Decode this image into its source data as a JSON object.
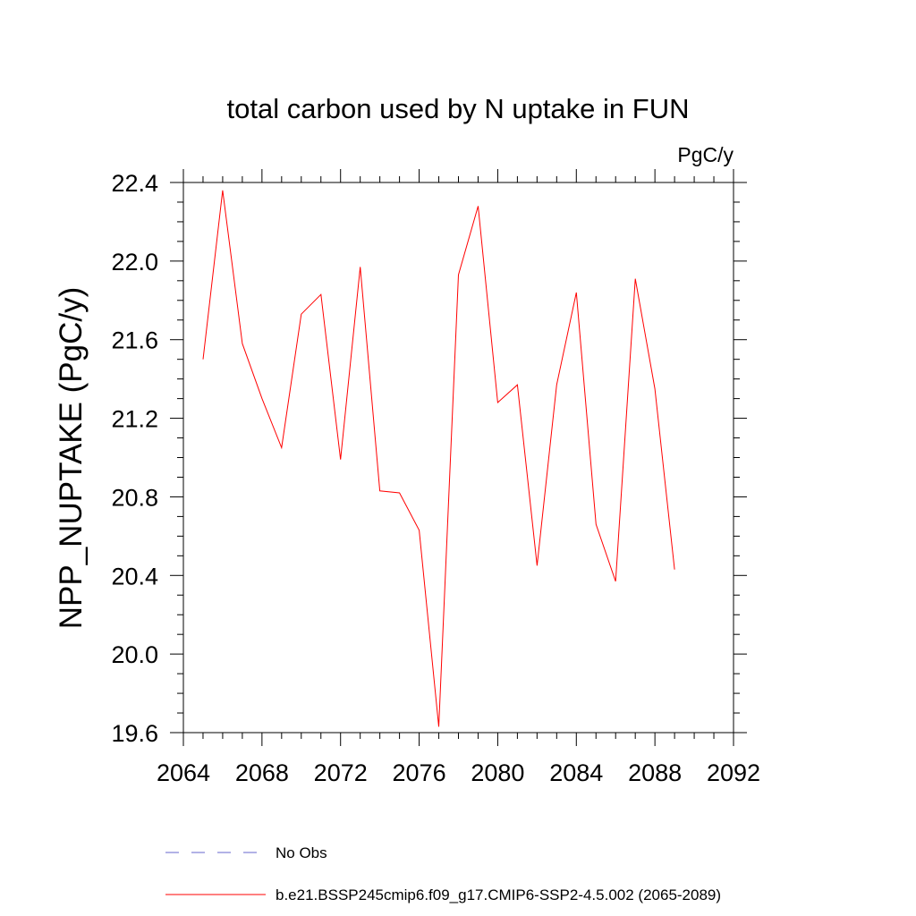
{
  "chart_data": {
    "type": "line",
    "title": "total carbon used by N uptake in FUN",
    "units_label": "PgC/y",
    "ylabel": "NPP_NUPTAKE  (PgC/y)",
    "xlabel": "",
    "xlim": [
      2064,
      2092
    ],
    "ylim": [
      19.6,
      22.4
    ],
    "xticks": [
      "2064",
      "2068",
      "2072",
      "2076",
      "2080",
      "2084",
      "2088",
      "2092"
    ],
    "yticks": [
      "19.6",
      "20.0",
      "20.4",
      "20.8",
      "21.2",
      "21.6",
      "22.0",
      "22.4"
    ],
    "grid": false,
    "x": [
      2065,
      2066,
      2067,
      2068,
      2069,
      2070,
      2071,
      2072,
      2073,
      2074,
      2075,
      2076,
      2077,
      2078,
      2079,
      2080,
      2081,
      2082,
      2083,
      2084,
      2085,
      2086,
      2087,
      2088,
      2089
    ],
    "series": [
      {
        "name": "b.e21.BSSP245cmip6.f09_g17.CMIP6-SSP2-4.5.002 (2065-2089)",
        "color": "#ff0000",
        "values": [
          21.5,
          22.36,
          21.58,
          21.3,
          21.05,
          21.73,
          21.83,
          20.99,
          21.97,
          20.83,
          20.82,
          20.63,
          19.63,
          21.93,
          22.28,
          21.28,
          21.37,
          20.45,
          21.37,
          21.84,
          20.66,
          20.37,
          21.91,
          21.35,
          20.43
        ]
      }
    ],
    "legend": [
      {
        "label": "No Obs",
        "style": "dashed",
        "color": "#6666cc"
      },
      {
        "label": "b.e21.BSSP245cmip6.f09_g17.CMIP6-SSP2-4.5.002 (2065-2089)",
        "style": "solid",
        "color": "#ff0000"
      }
    ],
    "legend_position": "bottom"
  }
}
